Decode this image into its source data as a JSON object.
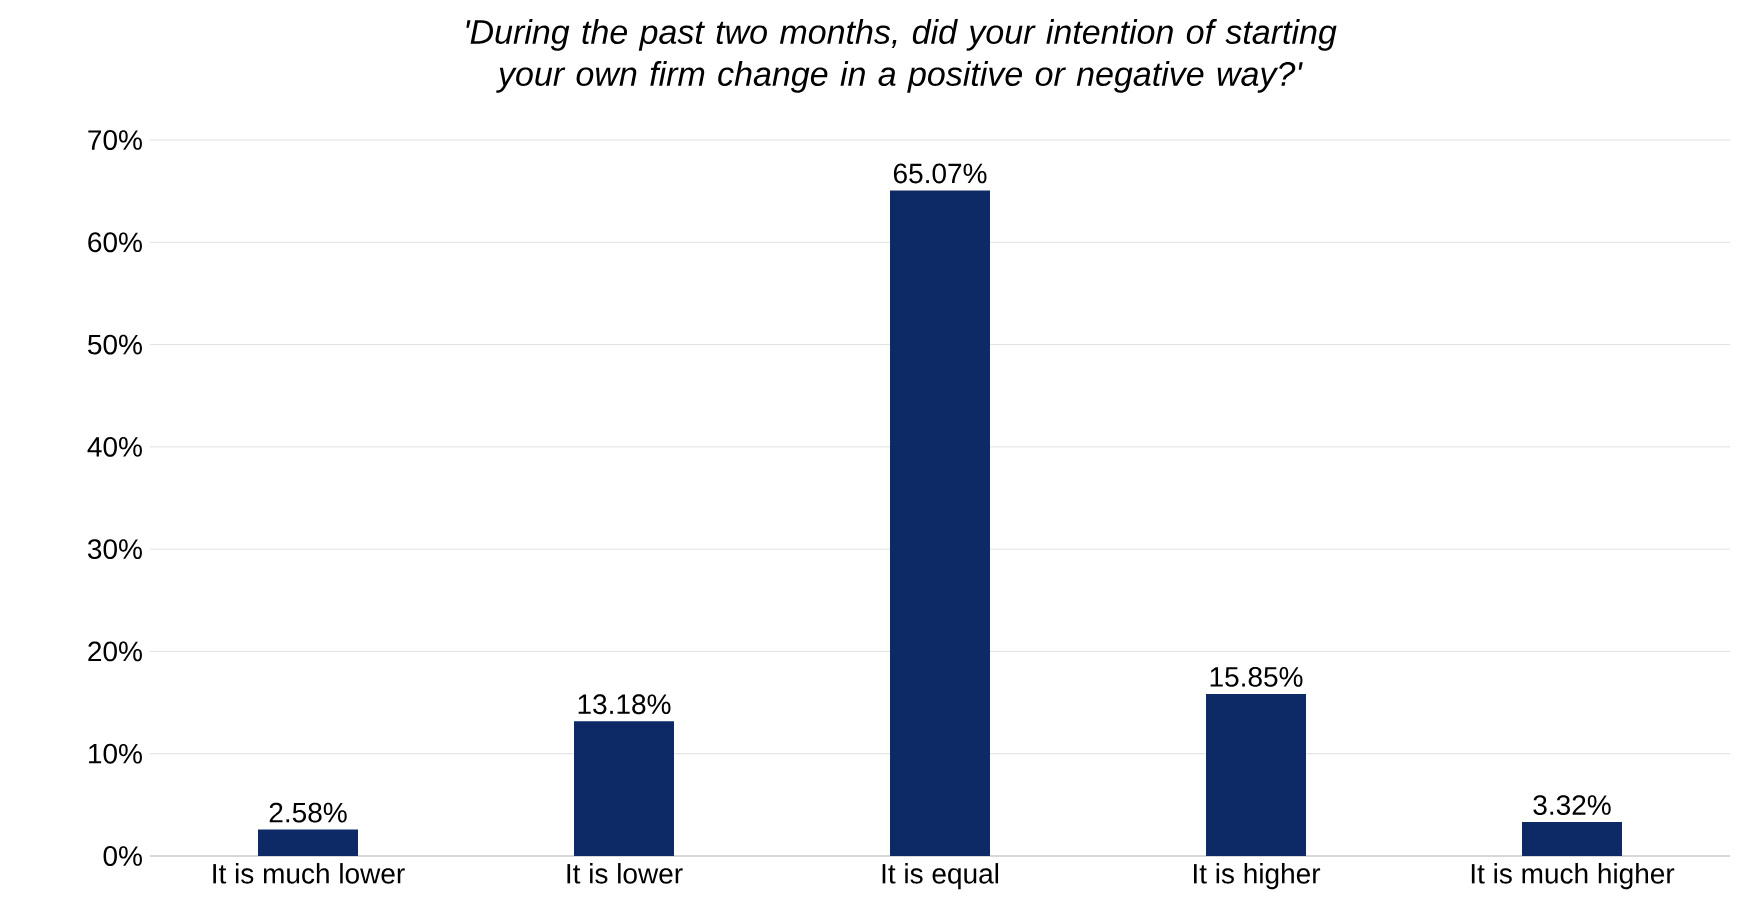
{
  "chart_data": {
    "type": "bar",
    "title": "'During the past two months, did your intention of starting your own firm change in a positive or negative way?'",
    "categories": [
      "It is much lower",
      "It is lower",
      "It is equal",
      "It is higher",
      "It is much higher"
    ],
    "values": [
      2.58,
      13.18,
      65.07,
      15.85,
      3.32
    ],
    "value_labels": [
      "2.58%",
      "13.18%",
      "65.07%",
      "15.85%",
      "3.32%"
    ],
    "color": "#0e2a66",
    "ylim": [
      0,
      70
    ],
    "yticks": [
      {
        "value": 0,
        "label": "0%"
      },
      {
        "value": 10,
        "label": "10%"
      },
      {
        "value": 20,
        "label": "20%"
      },
      {
        "value": 30,
        "label": "30%"
      },
      {
        "value": 40,
        "label": "40%"
      },
      {
        "value": 50,
        "label": "50%"
      },
      {
        "value": 60,
        "label": "60%"
      },
      {
        "value": 70,
        "label": "70%"
      }
    ],
    "grid": "y"
  }
}
